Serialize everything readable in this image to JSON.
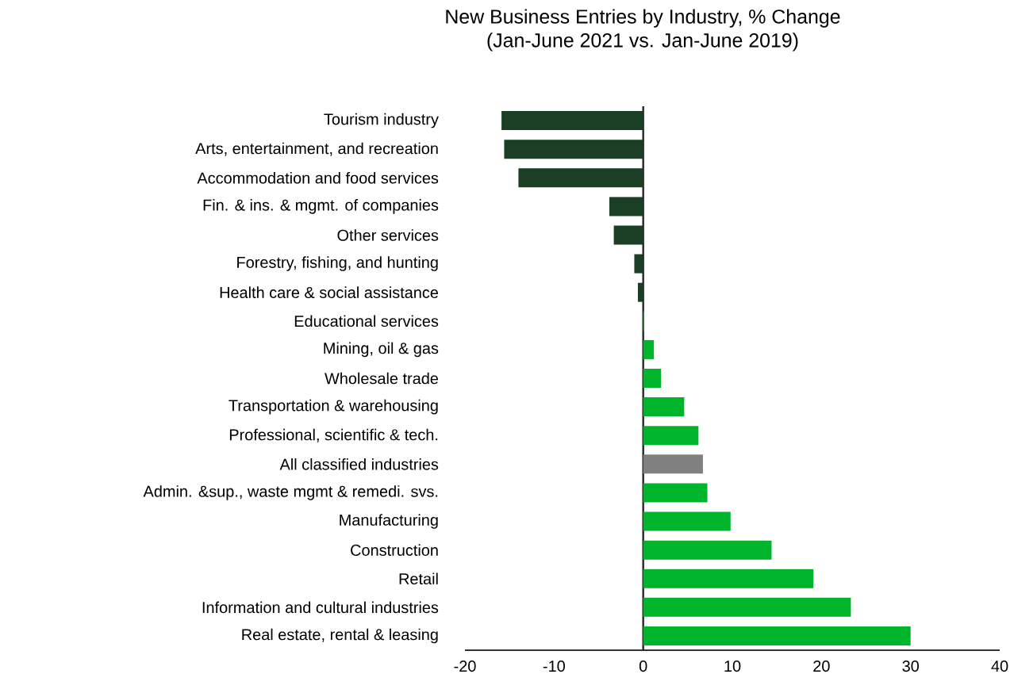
{
  "chart_data": {
    "type": "bar",
    "orientation": "horizontal",
    "title": "New Business Entries by Industry, % Change",
    "subtitle": "(Jan-June 2021 vs. Jan-June 2019)",
    "categories": [
      "Tourism industry",
      "Arts, entertainment, and recreation",
      "Accommodation and food services",
      "Fin. & ins. & mgmt. of companies",
      "Other services",
      "Forestry, fishing, and hunting",
      "Health care & social assistance",
      "Educational services",
      "Mining, oil & gas",
      "Wholesale trade",
      "Transportation & warehousing",
      "Professional, scientific & tech.",
      "All classified industries",
      "Admin. &sup., waste mgmt & remedi. svs.",
      "Manufacturing",
      "Construction",
      "Retail",
      "Information and cultural industries",
      "Real estate, rental & leasing"
    ],
    "values": [
      -15.9,
      -15.6,
      -14.0,
      -3.8,
      -3.3,
      -1.0,
      -0.6,
      0.1,
      1.2,
      2.0,
      4.6,
      6.2,
      6.7,
      7.2,
      9.8,
      14.4,
      19.1,
      23.3,
      30.0
    ],
    "colors": [
      "#1b3f25",
      "#1b3f25",
      "#1b3f25",
      "#1b3f25",
      "#1b3f25",
      "#1b3f25",
      "#1b3f25",
      "#00b52b",
      "#00b52b",
      "#00b52b",
      "#00b52b",
      "#00b52b",
      "#808080",
      "#00b52b",
      "#00b52b",
      "#00b52b",
      "#00b52b",
      "#00b52b",
      "#00b52b"
    ],
    "xlim": [
      -20,
      40
    ],
    "xticks": [
      -20,
      -10,
      0,
      10,
      20,
      30,
      40
    ]
  }
}
